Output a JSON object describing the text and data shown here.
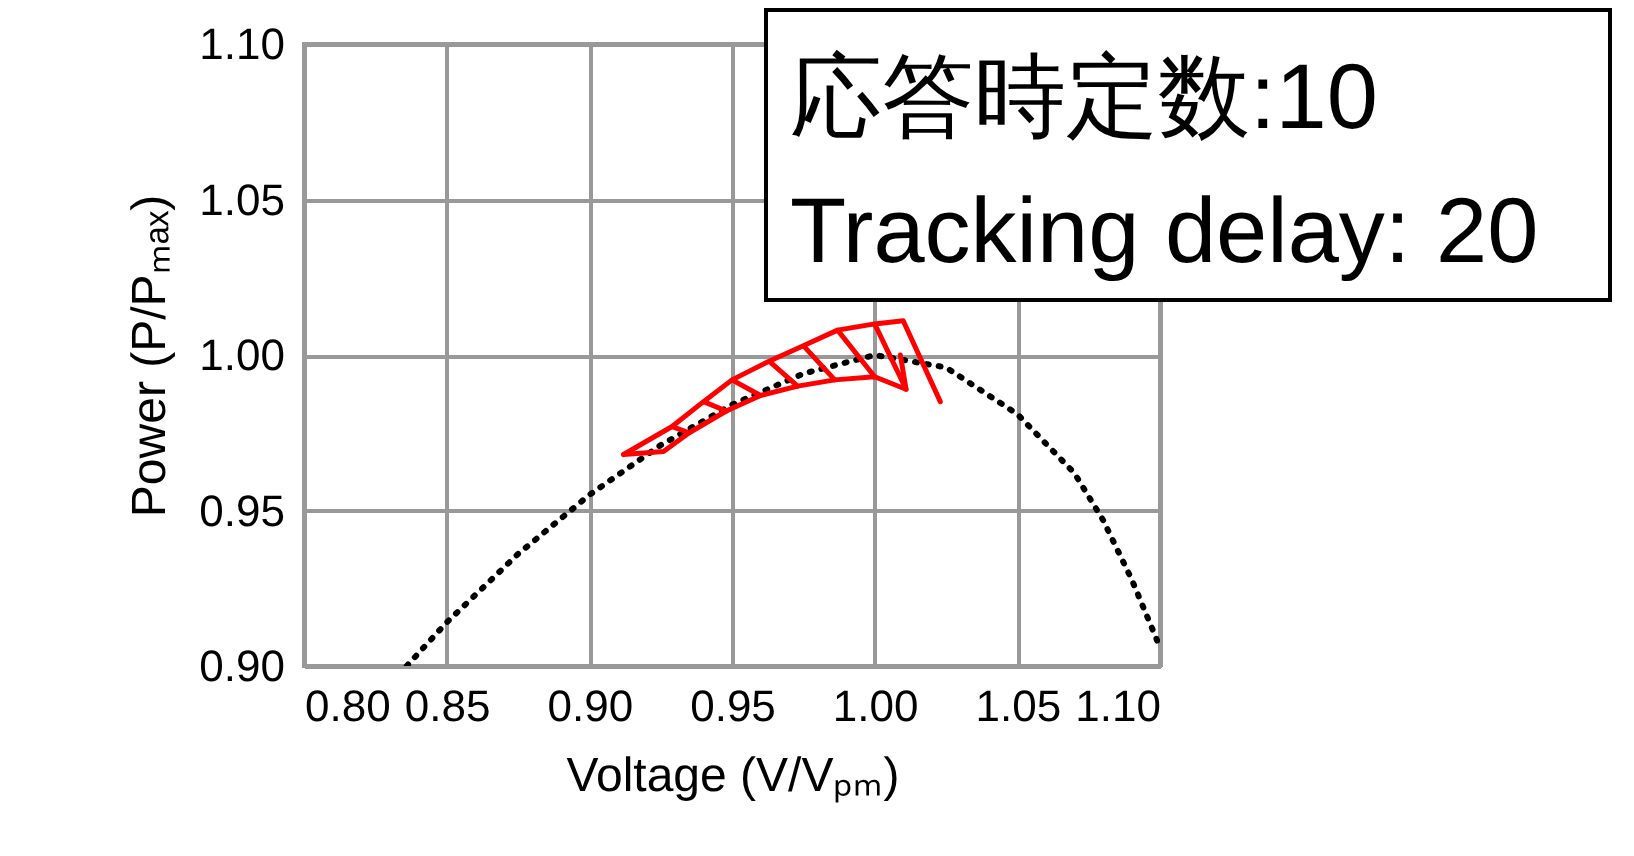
{
  "chart_data": {
    "type": "line",
    "xlabel": "Voltage (V/Vₚₘ)",
    "ylabel": "Power (P/Pₘₐₓ)",
    "xlim": [
      0.8,
      1.1
    ],
    "xticks": [
      {
        "value": 0.8,
        "label": "0.80"
      },
      {
        "value": 0.85,
        "label": "0.85"
      },
      {
        "value": 0.9,
        "label": "0.90"
      },
      {
        "value": 0.95,
        "label": "0.95"
      },
      {
        "value": 1.0,
        "label": "1.00"
      },
      {
        "value": 1.05,
        "label": "1.05"
      },
      {
        "value": 1.1,
        "label": "1.10"
      }
    ],
    "ylim": [
      0.9,
      1.1
    ],
    "yticks": [
      {
        "value": 0.9,
        "label": "0.90"
      },
      {
        "value": 0.95,
        "label": "0.95"
      },
      {
        "value": 1.0,
        "label": "1.00"
      },
      {
        "value": 1.05,
        "label": "1.05"
      },
      {
        "value": 1.1,
        "label": "1.10"
      }
    ],
    "grid": true,
    "marker": "none",
    "annotations": [
      "応答時定数:10",
      "Tracking delay: 20"
    ],
    "series": [
      {
        "color": "#000000",
        "line_style": "dotted",
        "x": [
          0.836,
          0.85,
          0.875,
          0.9,
          0.925,
          0.95,
          0.975,
          1.0,
          1.025,
          1.05,
          1.07,
          1.08,
          1.09,
          1.1
        ],
        "values": [
          0.9,
          0.914,
          0.936,
          0.955,
          0.971,
          0.984,
          0.994,
          1.0,
          0.996,
          0.981,
          0.962,
          0.947,
          0.928,
          0.906
        ]
      },
      {
        "color": "#ff0000",
        "line_style": "solid",
        "x": [
          0.912,
          0.929,
          0.935,
          0.929,
          0.94,
          0.948,
          0.94,
          0.95,
          0.96,
          0.95,
          0.963,
          0.973,
          0.963,
          0.975,
          0.986,
          0.975,
          0.987,
          1.0,
          0.987,
          1.0,
          1.011,
          1.0,
          1.01,
          1.023
        ],
        "values": [
          0.968,
          0.977,
          0.975,
          0.977,
          0.985,
          0.982,
          0.985,
          0.992,
          0.987,
          0.992,
          0.998,
          0.99,
          0.998,
          1.003,
          0.992,
          1.003,
          1.008,
          0.993,
          1.008,
          1.01,
          0.989,
          1.01,
          1.011,
          0.985
        ]
      },
      {
        "color": "#ff0000",
        "line_style": "solid",
        "x": [
          0.912,
          0.926,
          0.935,
          0.948,
          0.96,
          0.973,
          0.986,
          1.0,
          1.011,
          1.009
        ],
        "values": [
          0.968,
          0.969,
          0.975,
          0.982,
          0.987,
          0.99,
          0.992,
          0.993,
          0.989,
          1.0
        ]
      }
    ]
  }
}
